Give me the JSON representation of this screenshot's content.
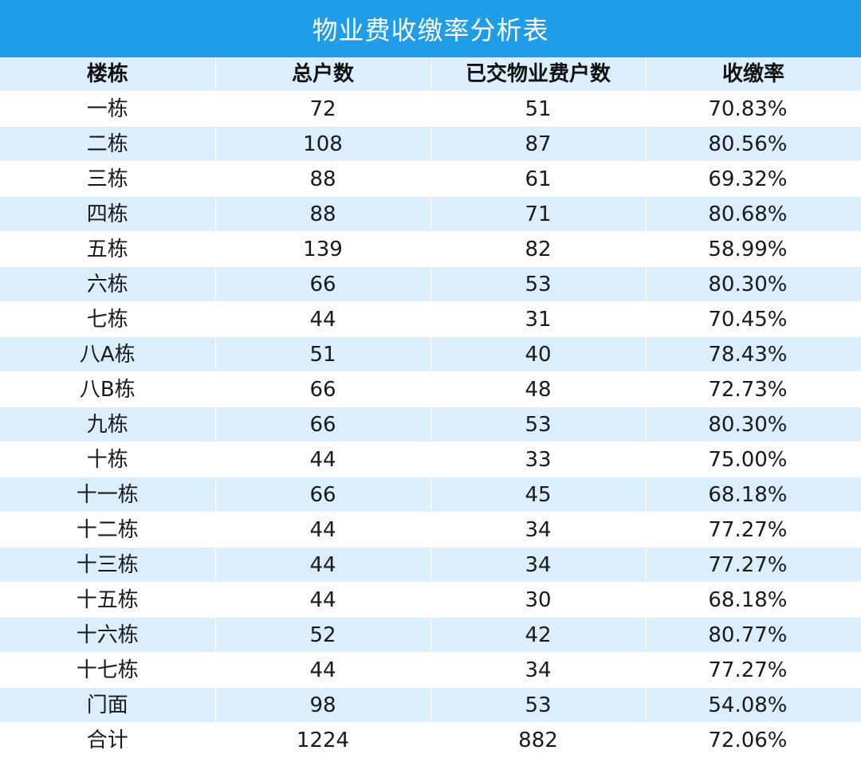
{
  "title": "物业费收缴率分析表",
  "colors": {
    "title_bg": "#1f9de8",
    "stripe": "#dbeefb",
    "text": "#1a1a1a"
  },
  "headers": [
    "楼栋",
    "总户数",
    "已交物业费户数",
    "收缴率"
  ],
  "rows": [
    [
      "一栋",
      "72",
      "51",
      "70.83%"
    ],
    [
      "二栋",
      "108",
      "87",
      "80.56%"
    ],
    [
      "三栋",
      "88",
      "61",
      "69.32%"
    ],
    [
      "四栋",
      "88",
      "71",
      "80.68%"
    ],
    [
      "五栋",
      "139",
      "82",
      "58.99%"
    ],
    [
      "六栋",
      "66",
      "53",
      "80.30%"
    ],
    [
      "七栋",
      "44",
      "31",
      "70.45%"
    ],
    [
      "八A栋",
      "51",
      "40",
      "78.43%"
    ],
    [
      "八B栋",
      "66",
      "48",
      "72.73%"
    ],
    [
      "九栋",
      "66",
      "53",
      "80.30%"
    ],
    [
      "十栋",
      "44",
      "33",
      "75.00%"
    ],
    [
      "十一栋",
      "66",
      "45",
      "68.18%"
    ],
    [
      "十二栋",
      "44",
      "34",
      "77.27%"
    ],
    [
      "十三栋",
      "44",
      "34",
      "77.27%"
    ],
    [
      "十五栋",
      "44",
      "30",
      "68.18%"
    ],
    [
      "十六栋",
      "52",
      "42",
      "80.77%"
    ],
    [
      "十七栋",
      "44",
      "34",
      "77.27%"
    ],
    [
      "门面",
      "98",
      "53",
      "54.08%"
    ],
    [
      "合计",
      "1224",
      "882",
      "72.06%"
    ]
  ]
}
